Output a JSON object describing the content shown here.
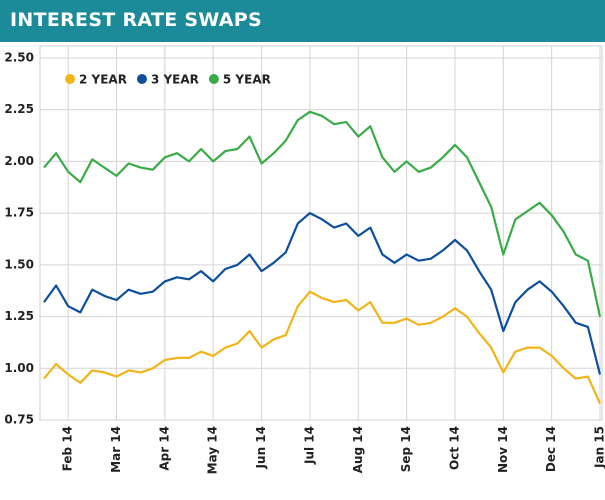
{
  "chart_data": {
    "type": "line",
    "title": "INTEREST RATE SWAPS",
    "categories": [
      null,
      null,
      "Feb 14",
      null,
      null,
      null,
      "Mar 14",
      null,
      null,
      null,
      "Apr 14",
      null,
      null,
      null,
      "May 14",
      null,
      null,
      null,
      "Jun 14",
      null,
      null,
      null,
      "Jul 14",
      null,
      null,
      null,
      "Aug 14",
      null,
      null,
      null,
      "Sep 14",
      null,
      null,
      null,
      "Oct 14",
      null,
      null,
      null,
      "Nov 14",
      null,
      null,
      null,
      "Dec 14",
      null,
      null,
      null,
      "Jan 15"
    ],
    "series": [
      {
        "name": "2 YEAR",
        "color": "#f2b418",
        "values": [
          0.95,
          1.02,
          0.97,
          0.93,
          0.99,
          0.98,
          0.96,
          0.99,
          0.98,
          1.0,
          1.04,
          1.05,
          1.05,
          1.08,
          1.06,
          1.1,
          1.12,
          1.18,
          1.1,
          1.14,
          1.16,
          1.3,
          1.37,
          1.34,
          1.32,
          1.33,
          1.28,
          1.32,
          1.22,
          1.22,
          1.24,
          1.21,
          1.22,
          1.25,
          1.29,
          1.25,
          1.17,
          1.1,
          0.98,
          1.08,
          1.1,
          1.1,
          1.06,
          1.0,
          0.95,
          0.96,
          0.83
        ]
      },
      {
        "name": "3 YEAR",
        "color": "#0d4f9c",
        "values": [
          1.32,
          1.4,
          1.3,
          1.27,
          1.38,
          1.35,
          1.33,
          1.38,
          1.36,
          1.37,
          1.42,
          1.44,
          1.43,
          1.47,
          1.42,
          1.48,
          1.5,
          1.55,
          1.47,
          1.51,
          1.56,
          1.7,
          1.75,
          1.72,
          1.68,
          1.7,
          1.64,
          1.68,
          1.55,
          1.51,
          1.55,
          1.52,
          1.53,
          1.57,
          1.62,
          1.57,
          1.47,
          1.38,
          1.18,
          1.32,
          1.38,
          1.42,
          1.37,
          1.3,
          1.22,
          1.2,
          0.97
        ]
      },
      {
        "name": "5 YEAR",
        "color": "#3aab48",
        "values": [
          1.97,
          2.04,
          1.95,
          1.9,
          2.01,
          1.97,
          1.93,
          1.99,
          1.97,
          1.96,
          2.02,
          2.04,
          2.0,
          2.06,
          2.0,
          2.05,
          2.06,
          2.12,
          1.99,
          2.04,
          2.1,
          2.2,
          2.24,
          2.22,
          2.18,
          2.19,
          2.12,
          2.17,
          2.02,
          1.95,
          2.0,
          1.95,
          1.97,
          2.02,
          2.08,
          2.02,
          1.9,
          1.78,
          1.55,
          1.72,
          1.76,
          1.8,
          1.74,
          1.66,
          1.55,
          1.52,
          1.25
        ]
      }
    ],
    "ylim": [
      0.75,
      2.5
    ],
    "yticks": [
      {
        "value": 0.75,
        "label": "0.75"
      },
      {
        "value": 1,
        "label": "1.00"
      },
      {
        "value": 1.25,
        "label": "1.25"
      },
      {
        "value": 1.5,
        "label": "1.50"
      },
      {
        "value": 1.75,
        "label": "1.75"
      },
      {
        "value": 2,
        "label": "2.00"
      },
      {
        "value": 2.25,
        "label": "2.25"
      },
      {
        "value": 2.5,
        "label": "2.50"
      }
    ],
    "grid": true,
    "legend": "top-left"
  }
}
